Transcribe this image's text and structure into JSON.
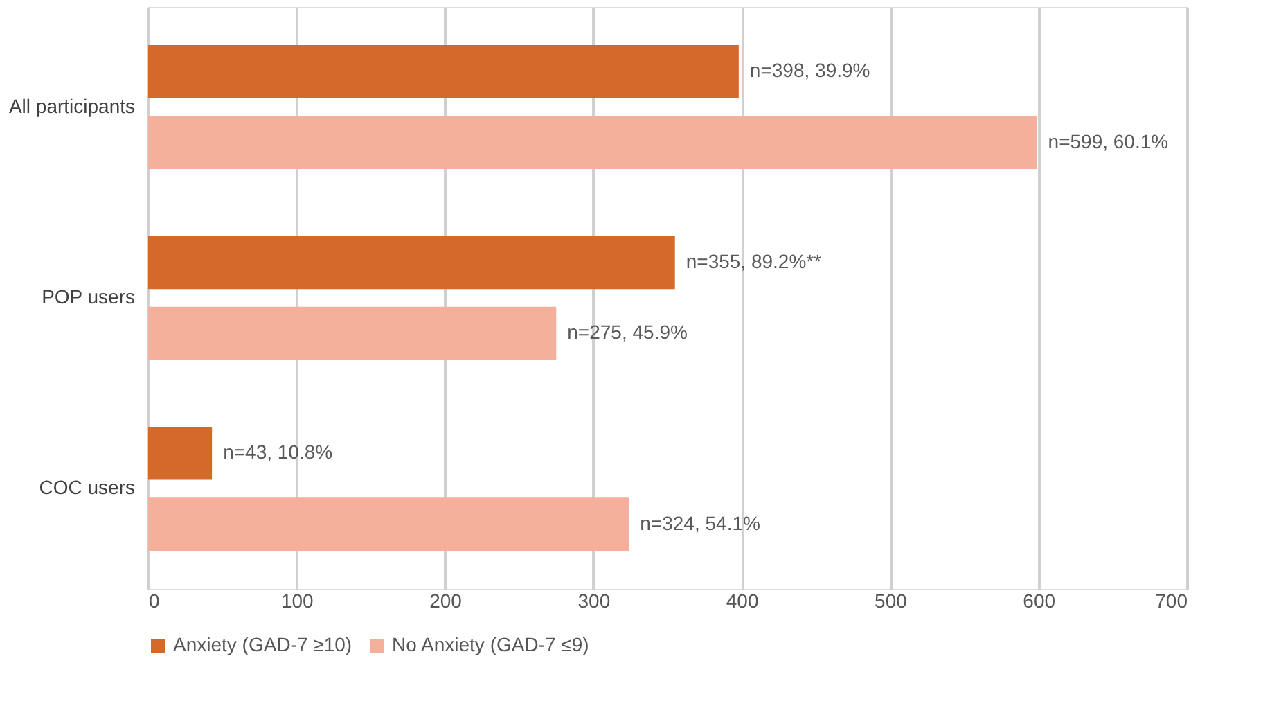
{
  "chart_data": {
    "type": "bar",
    "orientation": "horizontal",
    "categories": [
      "All participants",
      "POP users",
      "COC users"
    ],
    "series": [
      {
        "name": "Anxiety (GAD-7 ≥10)",
        "color": "#d4692a",
        "values": [
          398,
          355,
          43
        ],
        "value_labels": [
          "n=398, 39.9%",
          "n=355, 89.2%**",
          "n=43, 10.8%"
        ]
      },
      {
        "name": "No Anxiety (GAD-7 ≤9)",
        "color": "#f4b09a",
        "values": [
          599,
          275,
          324
        ],
        "value_labels": [
          "n=599, 60.1%",
          "n=275, 45.9%",
          "n=324, 54.1%"
        ]
      }
    ],
    "xlim": [
      0,
      700
    ],
    "xticks": [
      0,
      100,
      200,
      300,
      400,
      500,
      600,
      700
    ],
    "grid": "x",
    "legend": "bottom"
  }
}
